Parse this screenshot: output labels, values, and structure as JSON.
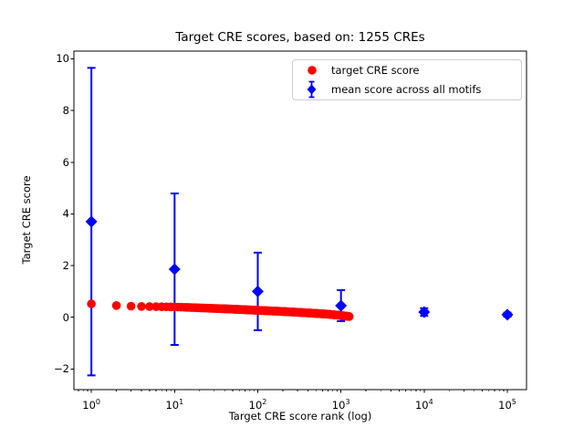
{
  "title": "Target CRE scores, based on: 1255 CREs",
  "axes": {
    "xlabel": "Target CRE score rank (log)",
    "ylabel": "Target CRE score"
  },
  "legend": {
    "items": [
      {
        "label": "target CRE score",
        "marker": "circle",
        "color": "#ff0000"
      },
      {
        "label": "mean score across all motifs",
        "marker": "diamond-errorbar",
        "color": "#0000ff"
      }
    ]
  },
  "chart_data": {
    "type": "scatter",
    "title": "Target CRE scores, based on: 1255 CREs",
    "xlabel": "Target CRE score rank (log)",
    "ylabel": "Target CRE score",
    "xscale": "log",
    "xlim_log": [
      -0.21,
      5.23
    ],
    "ylim": [
      -2.8,
      10.3
    ],
    "yticks": [
      -2,
      0,
      2,
      4,
      6,
      8,
      10
    ],
    "xtick_exponents": [
      0,
      1,
      2,
      3,
      4,
      5
    ],
    "grid": false,
    "legend_position": "upper right",
    "series": [
      {
        "name": "target CRE score",
        "marker": "circle",
        "color": "#ff0000",
        "n_points": 1255,
        "rank_range": [
          1,
          1255
        ],
        "sample_points": [
          [
            1,
            0.52
          ],
          [
            2,
            0.455
          ],
          [
            3,
            0.43
          ],
          [
            4,
            0.42
          ],
          [
            6,
            0.41
          ],
          [
            10,
            0.4
          ],
          [
            20,
            0.365
          ],
          [
            50,
            0.315
          ],
          [
            100,
            0.27
          ],
          [
            200,
            0.225
          ],
          [
            400,
            0.17
          ],
          [
            700,
            0.12
          ],
          [
            1000,
            0.07
          ],
          [
            1255,
            0.03
          ]
        ]
      },
      {
        "name": "mean score across all motifs",
        "marker": "diamond",
        "color": "#0000ff",
        "points": [
          {
            "x": 1,
            "y": 3.7,
            "err": 5.95
          },
          {
            "x": 10,
            "y": 1.86,
            "err": 2.93
          },
          {
            "x": 100,
            "y": 1.0,
            "err": 1.5
          },
          {
            "x": 1000,
            "y": 0.45,
            "err": 0.6
          },
          {
            "x": 10000,
            "y": 0.2,
            "err": 0.15
          },
          {
            "x": 100000,
            "y": 0.1,
            "err": 0.08
          }
        ]
      }
    ]
  }
}
